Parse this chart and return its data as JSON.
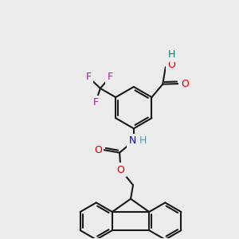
{
  "bg_color": "#ebebeb",
  "bond_color": "#1a1a1a",
  "bond_lw": 1.5,
  "atom_colors": {
    "F": "#cc00cc",
    "O": "#cc0000",
    "N": "#0000cc",
    "H_o": "#008080",
    "H_n": "#5599aa"
  },
  "fs": 9.0,
  "dpi": 100,
  "xlim": [
    0,
    10
  ],
  "ylim": [
    0,
    10
  ]
}
